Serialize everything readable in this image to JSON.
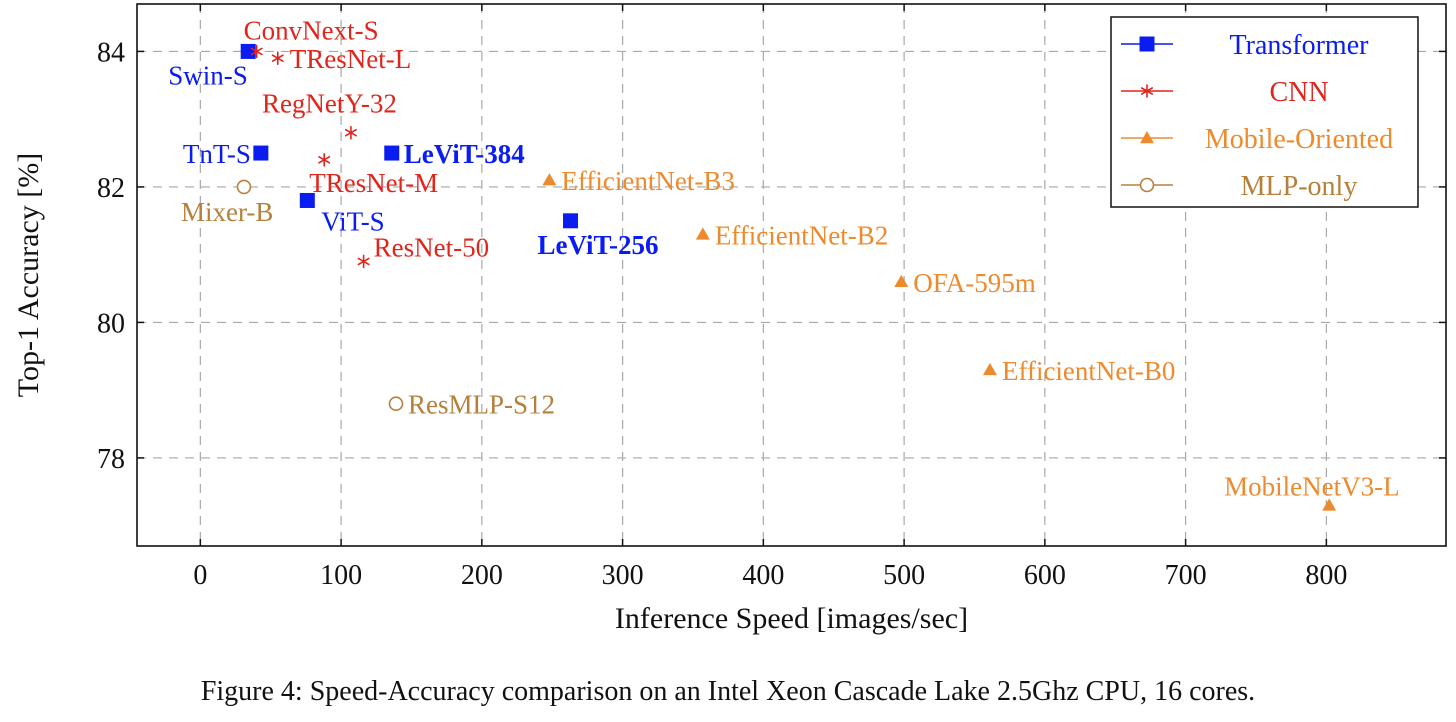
{
  "chart_data": {
    "type": "scatter",
    "xlabel": "Inference Speed [images/sec]",
    "ylabel": "Top-1 Accuracy [%]",
    "xlim": [
      -45,
      885
    ],
    "ylim": [
      76.7,
      84.7
    ],
    "x_ticks": [
      0,
      100,
      200,
      300,
      400,
      500,
      600,
      700,
      800
    ],
    "y_ticks": [
      78,
      80,
      82,
      84
    ],
    "grid": true,
    "legend_position": "top-right",
    "series": [
      {
        "name": "Transformer",
        "marker": "square",
        "color": "#0a1cf0",
        "points": [
          {
            "label": "Swin-S",
            "x": 34,
            "y": 84.0
          },
          {
            "label": "TnT-S",
            "x": 43,
            "y": 82.5
          },
          {
            "label": "ViT-S",
            "x": 76,
            "y": 81.8
          },
          {
            "label": "LeViT-384",
            "x": 136,
            "y": 82.5,
            "bold": true
          },
          {
            "label": "LeViT-256",
            "x": 263,
            "y": 81.5,
            "bold": true
          }
        ]
      },
      {
        "name": "CNN",
        "marker": "asterisk",
        "color": "#e0251d",
        "points": [
          {
            "label": "ConvNext-S",
            "x": 40,
            "y": 84.0
          },
          {
            "label": "TResNet-L",
            "x": 55,
            "y": 83.9
          },
          {
            "label": "RegNetY-32",
            "x": 107,
            "y": 82.8
          },
          {
            "label": "TResNet-M",
            "x": 88,
            "y": 82.4
          },
          {
            "label": "ResNet-50",
            "x": 116,
            "y": 80.9
          }
        ]
      },
      {
        "name": "Mobile-Oriented",
        "marker": "triangle",
        "color": "#ee8a2e",
        "points": [
          {
            "label": "EfficientNet-B3",
            "x": 248,
            "y": 82.1
          },
          {
            "label": "EfficientNet-B2",
            "x": 357,
            "y": 81.3
          },
          {
            "label": "OFA-595m",
            "x": 498,
            "y": 80.6
          },
          {
            "label": "EfficientNet-B0",
            "x": 561,
            "y": 79.3
          },
          {
            "label": "MobileNetV3-L",
            "x": 802,
            "y": 77.3
          }
        ]
      },
      {
        "name": "MLP-only",
        "marker": "circle",
        "color": "#b5803c",
        "points": [
          {
            "label": "Mixer-B",
            "x": 31,
            "y": 82.0
          },
          {
            "label": "ResMLP-S12",
            "x": 139,
            "y": 78.8
          }
        ]
      }
    ]
  },
  "caption": "Figure 4: Speed-Accuracy comparison on an Intel Xeon Cascade Lake 2.5Ghz CPU, 16 cores."
}
